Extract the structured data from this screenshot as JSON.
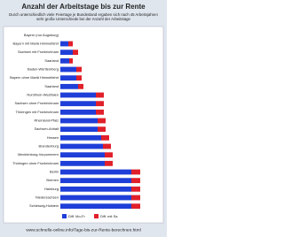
{
  "chart_data": {
    "type": "stacked-bar-horizontal",
    "title": "Anzahl der Arbeitstage bis zur Rente",
    "subtitle": "Durch unterschiedlich viele Feiertage je Bundesland ergaben sich nach 45 Arbeitsjahren sehr große Unterschiede bei der Anzahl der Arbeitstage",
    "source": "www.schnelle-online.info/Tage-bis-zur-Rente-berechnen.html",
    "categories": [
      "Bayern (nur Augsburg)",
      "Bayern mit Mariä Himmelfahrt",
      "Sachsen mit Fronleichnam",
      "Saarland",
      "Baden-Württemberg",
      "Bayern ohne Mariä Himmelfahrt",
      "Saarland",
      "Nordrhein-Westfalen",
      "Sachsen ohne Fronleichnam",
      "Thüringen mit Fronleichnam",
      "Rheinland-Pfalz",
      "Sachsen-Anhalt",
      "Hessen",
      "Brandenburg",
      "Mecklenburg-Vorpommern",
      "Thüringen ohne Fronleichnam",
      "Berlin",
      "Bremen",
      "Hamburg",
      "Niedersachsen",
      "Schleswig-Holstein"
    ],
    "series": [
      {
        "name": "Diff. Mo-Fr",
        "color": "#1f3fd8",
        "values": [
          0,
          9,
          14,
          10,
          18,
          18,
          20,
          40,
          40,
          40,
          42,
          42,
          46,
          48,
          50,
          50,
          80,
          80,
          80,
          80,
          80
        ]
      },
      {
        "name": "Diff. mit Sa",
        "color": "#e0202a",
        "values": [
          0,
          5,
          6,
          4,
          6,
          6,
          6,
          9,
          9,
          9,
          9,
          9,
          9,
          9,
          9,
          9,
          10,
          10,
          10,
          10,
          10
        ]
      }
    ],
    "xlim": [
      0,
      100
    ]
  }
}
